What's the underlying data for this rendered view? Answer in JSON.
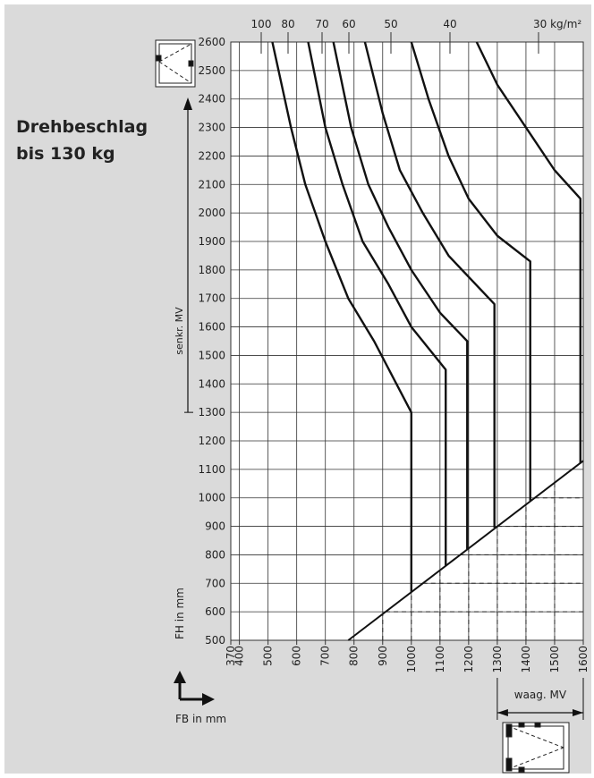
{
  "chart_data": {
    "type": "line",
    "title": [
      "Drehbeschlag",
      "bis 130 kg"
    ],
    "top_labels": [
      "100",
      "80",
      "70",
      "60",
      "50",
      "40",
      "30 kg/m²"
    ],
    "y_axis_label": "FH in mm",
    "x_axis_label": "FB in mm",
    "vertical_range_label": "senkr. MV",
    "vertical_range": [
      1300,
      2600
    ],
    "horizontal_range_label": "waag. MV",
    "horizontal_range": [
      1300,
      1600
    ],
    "xlim": [
      370,
      1600
    ],
    "ylim": [
      500,
      2600
    ],
    "xticks": [
      370,
      400,
      500,
      600,
      700,
      800,
      900,
      1000,
      1100,
      1200,
      1300,
      1400,
      1500,
      1600
    ],
    "yticks": [
      500,
      600,
      700,
      800,
      900,
      1000,
      1100,
      1200,
      1300,
      1400,
      1500,
      1600,
      1700,
      1800,
      1900,
      2000,
      2100,
      2200,
      2300,
      2400,
      2500,
      2600
    ],
    "grid": true,
    "color": "#111111",
    "series": [
      {
        "x": [
          515,
          580,
          630,
          700,
          780,
          870,
          1000,
          1000
        ],
        "values": [
          2600,
          2300,
          2100,
          1900,
          1700,
          1550,
          1300,
          670
        ]
      },
      {
        "x": [
          640,
          700,
          760,
          830,
          920,
          1000,
          1120,
          1120
        ],
        "values": [
          2600,
          2300,
          2100,
          1900,
          1750,
          1600,
          1450,
          760
        ]
      },
      {
        "x": [
          728,
          790,
          850,
          920,
          1000,
          1100,
          1195,
          1195
        ],
        "values": [
          2600,
          2300,
          2100,
          1950,
          1800,
          1650,
          1550,
          820
        ]
      },
      {
        "x": [
          838,
          900,
          960,
          1040,
          1130,
          1290,
          1290
        ],
        "values": [
          2600,
          2350,
          2150,
          2000,
          1850,
          1680,
          895
        ]
      },
      {
        "x": [
          1000,
          1060,
          1130,
          1200,
          1300,
          1415,
          1415
        ],
        "values": [
          2600,
          2400,
          2200,
          2050,
          1920,
          1830,
          990
        ]
      },
      {
        "x": [
          1228,
          1300,
          1400,
          1500,
          1590,
          1590
        ],
        "values": [
          2600,
          2450,
          2300,
          2150,
          2050,
          1120
        ]
      }
    ],
    "limit_line": {
      "x": [
        780,
        1600
      ],
      "values": [
        500,
        1130
      ]
    },
    "dashed_x": [
      900,
      1000,
      1100,
      1200,
      1300,
      1400,
      1500
    ],
    "dashed_y": [
      600,
      700,
      800,
      900,
      1000
    ]
  }
}
